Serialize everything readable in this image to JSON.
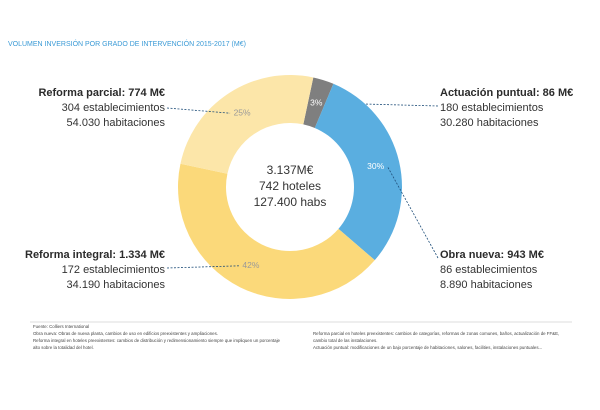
{
  "chart_data": {
    "type": "donut",
    "title": "VOLUMEN INVERSIÓN POR GRADO DE INTERVENCIÓN 2015-2017 (M€)",
    "values": [
      3,
      30,
      42,
      25
    ],
    "value_labels": [
      "3%",
      "30%",
      "42%",
      "25%"
    ],
    "colors": [
      "#7f7f7f",
      "#5aaee0",
      "#fbd97a",
      "#fce6a9"
    ],
    "annotations": [
      {
        "lines": [
          "Actuación puntual: 86 M€",
          "180 establecimientos",
          "30.280 habitaciones"
        ]
      },
      {
        "lines": [
          "Obra nueva: 943 M€",
          "86 establecimientos",
          "8.890 habitaciones"
        ]
      },
      {
        "lines": [
          "Reforma integral: 1.334 M€",
          "172 establecimientos",
          "34.190 habitaciones"
        ]
      },
      {
        "lines": [
          "Reforma parcial: 774 M€",
          "304 establecimientos",
          "54.030 habitaciones"
        ]
      }
    ],
    "center_text": [
      "3.137M€",
      "742 hoteles",
      "127.400 habs"
    ],
    "source": "Fuente: Colliers International",
    "notes_left": [
      "Obra nueva: Obras de nueva planta, cambios de uso en edificios preexistentes y ampliaciones.",
      "Reforma integral en hoteles preexistentes: cambios de distribución y redimensionamiento siempre que impliquen un porcentaje",
      "alto sobre la totalidad del hotel."
    ],
    "notes_right": [
      "Reforma parcial en hoteles preexistentes: cambios de categorías, reformas de zonas comunes, baños, actualización de FF&E,",
      "cambio total de las instalaciones.",
      "Actuación puntual: modificaciones de un bajo porcentaje de habitaciones, salones, facilities, instalaciones puntuales..."
    ]
  }
}
